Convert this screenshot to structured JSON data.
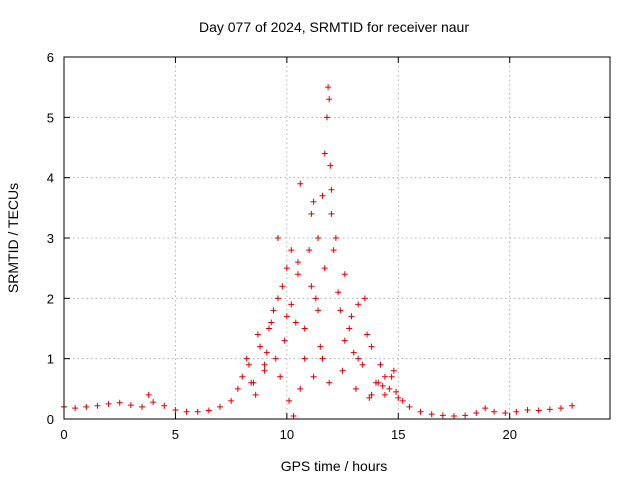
{
  "chart_data": {
    "type": "scatter",
    "title": "Day 077 of 2024, SRMTID for receiver naur",
    "xlabel": "GPS time / hours",
    "ylabel": "SRMTID / TECUs",
    "xlim": [
      0,
      24.5
    ],
    "ylim": [
      0,
      6
    ],
    "xticks": [
      0,
      5,
      10,
      15,
      20
    ],
    "yticks": [
      0,
      1,
      2,
      3,
      4,
      5,
      6
    ],
    "marker": "+",
    "color": "#e00000",
    "grid": true,
    "series": [
      {
        "name": "SRMTID",
        "x": [
          0.0,
          0.5,
          1.0,
          1.5,
          2.0,
          2.5,
          3.0,
          3.5,
          3.8,
          4.0,
          4.5,
          5.0,
          5.5,
          6.0,
          6.5,
          7.0,
          7.5,
          7.8,
          8.0,
          8.2,
          8.4,
          8.6,
          8.8,
          9.0,
          9.2,
          9.4,
          9.5,
          9.6,
          9.8,
          10.0,
          10.1,
          10.2,
          10.3,
          10.4,
          10.5,
          10.6,
          10.8,
          11.0,
          11.1,
          11.2,
          11.3,
          11.4,
          11.5,
          11.6,
          11.7,
          11.8,
          11.85,
          11.9,
          11.95,
          12.0,
          12.1,
          12.2,
          12.4,
          12.6,
          12.8,
          13.0,
          13.2,
          13.4,
          13.6,
          13.8,
          14.0,
          14.2,
          14.4,
          14.6,
          14.8,
          15.0,
          15.2,
          15.5,
          16.0,
          16.5,
          17.0,
          17.5,
          18.0,
          18.5,
          18.9,
          19.3,
          19.8,
          20.3,
          20.8,
          21.3,
          21.8,
          22.3,
          22.8,
          8.3,
          8.5,
          8.7,
          9.0,
          9.3,
          9.6,
          9.9,
          10.2,
          10.5,
          10.8,
          11.1,
          11.4,
          11.7,
          12.0,
          12.3,
          12.6,
          12.9,
          13.2,
          13.5,
          13.8,
          14.1,
          14.4,
          14.7,
          9.1,
          9.7,
          10.0,
          10.6,
          11.2,
          11.6,
          11.9,
          12.5,
          13.1,
          13.7,
          14.3,
          14.9
        ],
        "y": [
          0.2,
          0.18,
          0.2,
          0.22,
          0.25,
          0.27,
          0.23,
          0.2,
          0.4,
          0.28,
          0.22,
          0.15,
          0.12,
          0.12,
          0.14,
          0.2,
          0.3,
          0.5,
          0.7,
          1.0,
          0.6,
          0.4,
          1.2,
          0.9,
          1.5,
          1.8,
          1.0,
          3.0,
          2.2,
          1.7,
          0.3,
          2.8,
          0.05,
          1.6,
          2.4,
          3.9,
          1.0,
          2.8,
          3.4,
          3.6,
          2.0,
          3.0,
          1.2,
          3.7,
          4.4,
          5.0,
          5.5,
          5.3,
          4.2,
          3.4,
          2.8,
          3.0,
          1.8,
          2.4,
          1.5,
          1.1,
          1.9,
          0.9,
          1.4,
          0.4,
          0.6,
          0.9,
          0.7,
          0.5,
          0.8,
          0.35,
          0.3,
          0.2,
          0.12,
          0.08,
          0.06,
          0.05,
          0.06,
          0.1,
          0.18,
          0.12,
          0.1,
          0.12,
          0.15,
          0.14,
          0.16,
          0.18,
          0.22,
          0.9,
          0.6,
          1.4,
          0.8,
          1.6,
          2.0,
          1.3,
          1.9,
          2.6,
          1.5,
          2.2,
          1.8,
          2.5,
          3.8,
          2.1,
          1.3,
          1.7,
          1.0,
          2.0,
          1.2,
          0.6,
          0.4,
          0.7,
          1.1,
          0.7,
          2.5,
          0.5,
          0.7,
          1.0,
          0.6,
          0.8,
          0.5,
          0.35,
          0.55,
          0.45
        ]
      }
    ]
  }
}
